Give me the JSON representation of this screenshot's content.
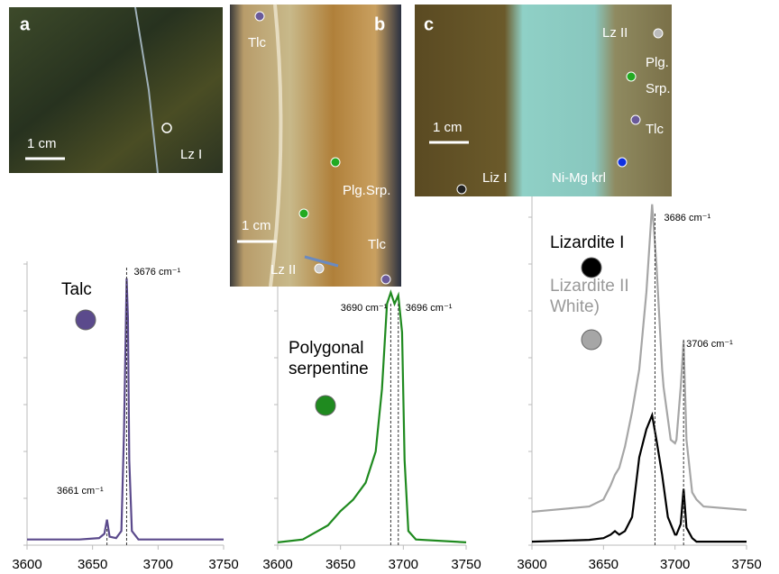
{
  "chart_data": [
    {
      "type": "line",
      "x": [
        3600,
        3640,
        3655,
        3659,
        3661,
        3663,
        3668,
        3672,
        3674,
        3676,
        3677,
        3678,
        3680,
        3685,
        3700,
        3750
      ],
      "series": [
        {
          "name": "Talc",
          "color": "#5b4a8c",
          "values": [
            2,
            2,
            2.5,
            4,
            9,
            3,
            2.5,
            5,
            40,
            94,
            80,
            30,
            5,
            2,
            2,
            2
          ]
        }
      ],
      "xlim": [
        3600,
        3750
      ],
      "xticks": [
        3600,
        3650,
        3700,
        3750
      ],
      "ylim": [
        0,
        100
      ],
      "peaks": [
        {
          "x": 3676,
          "label": "3676 cm⁻¹"
        },
        {
          "x": 3661,
          "label": "3661 cm⁻¹"
        }
      ]
    },
    {
      "type": "line",
      "x": [
        3600,
        3620,
        3640,
        3650,
        3660,
        3670,
        3678,
        3683,
        3687,
        3690,
        3693,
        3696,
        3699,
        3701,
        3704,
        3710,
        3750
      ],
      "series": [
        {
          "name": "Polygonal serpentine",
          "color": "#1f8a1f",
          "values": [
            1,
            2,
            7,
            12,
            16,
            22,
            33,
            55,
            85,
            89,
            85,
            88,
            75,
            30,
            5,
            2,
            1
          ]
        }
      ],
      "xlim": [
        3600,
        3750
      ],
      "xticks": [
        3600,
        3650,
        3700,
        3750
      ],
      "ylim": [
        0,
        100
      ],
      "peaks": [
        {
          "x": 3690,
          "label": "3690 cm⁻¹"
        },
        {
          "x": 3696,
          "label": "3696 cm⁻¹"
        }
      ]
    },
    {
      "type": "line",
      "x": [
        3600,
        3640,
        3650,
        3655,
        3658,
        3661,
        3665,
        3670,
        3675,
        3680,
        3684,
        3687,
        3691,
        3692,
        3695,
        3697,
        3700,
        3701,
        3704,
        3706,
        3708,
        3712,
        3715,
        3720,
        3750
      ],
      "series": [
        {
          "name": "Lizardite I",
          "color": "#000000",
          "values": [
            1,
            1.5,
            2,
            3,
            4,
            3,
            4,
            8,
            25,
            33,
            37,
            30,
            20,
            17,
            8,
            6,
            3,
            3,
            6,
            16,
            5,
            2,
            1,
            1,
            1
          ]
        },
        {
          "name": "Lizardite II White)",
          "color": "#a6a6a6",
          "values": [
            9.5,
            11,
            13,
            17,
            20,
            22,
            28,
            38,
            50,
            72,
            97,
            80,
            50,
            45,
            36,
            30,
            29,
            30,
            45,
            58,
            30,
            15,
            13,
            11,
            10
          ]
        }
      ],
      "xlim": [
        3600,
        3750
      ],
      "xticks": [
        3600,
        3650,
        3700,
        3750
      ],
      "ylim": [
        0,
        100
      ],
      "peaks": [
        {
          "x": 3686,
          "label": "3686 cm⁻¹"
        },
        {
          "x": 3706,
          "label": "3706 cm⁻¹"
        }
      ]
    }
  ],
  "photos": [
    {
      "panel": "a",
      "scale": "1 cm",
      "labels": [
        "Lz I"
      ]
    },
    {
      "panel": "b",
      "scale": "1 cm",
      "labels": [
        "Tlc",
        "Plg.Srp.",
        "Tlc",
        "Lz II"
      ]
    },
    {
      "panel": "c",
      "scale": "1 cm",
      "labels": [
        "Lz II",
        "Plg.",
        "Srp.",
        "Tlc",
        "Liz I",
        "Ni-Mg krl"
      ]
    }
  ]
}
